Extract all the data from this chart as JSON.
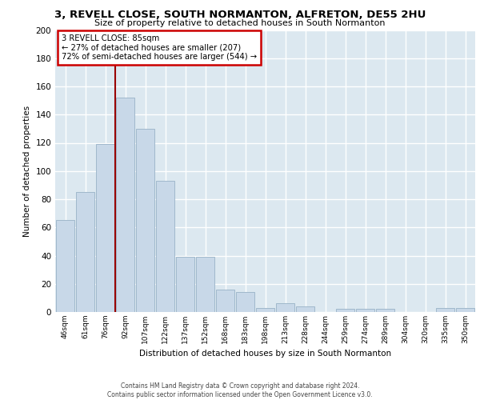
{
  "title1": "3, REVELL CLOSE, SOUTH NORMANTON, ALFRETON, DE55 2HU",
  "title2": "Size of property relative to detached houses in South Normanton",
  "xlabel": "Distribution of detached houses by size in South Normanton",
  "ylabel": "Number of detached properties",
  "bar_color": "#c8d8e8",
  "bar_edge_color": "#a0b8cc",
  "background_color": "#dce8f0",
  "grid_color": "#ffffff",
  "categories": [
    "46sqm",
    "61sqm",
    "76sqm",
    "92sqm",
    "107sqm",
    "122sqm",
    "137sqm",
    "152sqm",
    "168sqm",
    "183sqm",
    "198sqm",
    "213sqm",
    "228sqm",
    "244sqm",
    "259sqm",
    "274sqm",
    "289sqm",
    "304sqm",
    "320sqm",
    "335sqm",
    "350sqm"
  ],
  "values": [
    65,
    85,
    119,
    152,
    130,
    93,
    39,
    39,
    16,
    14,
    3,
    6,
    4,
    0,
    2,
    2,
    2,
    0,
    0,
    3,
    3
  ],
  "property_line_x": 2.5,
  "property_label": "3 REVELL CLOSE: 85sqm",
  "annotation_line1": "← 27% of detached houses are smaller (207)",
  "annotation_line2": "72% of semi-detached houses are larger (544) →",
  "annotation_box_color": "#ffffff",
  "annotation_box_edge": "#cc0000",
  "property_line_color": "#990000",
  "ylim": [
    0,
    200
  ],
  "yticks": [
    0,
    20,
    40,
    60,
    80,
    100,
    120,
    140,
    160,
    180,
    200
  ],
  "footer1": "Contains HM Land Registry data © Crown copyright and database right 2024.",
  "footer2": "Contains public sector information licensed under the Open Government Licence v3.0."
}
